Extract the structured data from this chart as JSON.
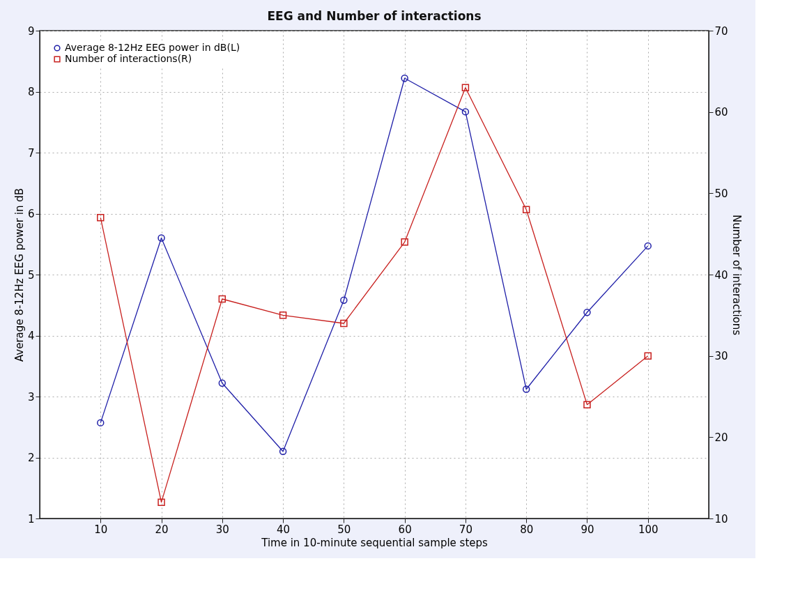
{
  "chart_data": {
    "type": "line",
    "title": "EEG and Number of interactions",
    "xlabel": "Time in 10-minute sequential sample steps",
    "ylabel": "Average 8-12Hz EEG power in dB",
    "y2label": "Number of interactions",
    "x": [
      10,
      20,
      30,
      40,
      50,
      60,
      70,
      80,
      90,
      100
    ],
    "xlim": [
      0,
      110
    ],
    "xticks": [
      10,
      20,
      30,
      40,
      50,
      60,
      70,
      80,
      90,
      100
    ],
    "ylim": [
      1,
      9
    ],
    "yticks": [
      1,
      2,
      3,
      4,
      5,
      6,
      7,
      8,
      9
    ],
    "y2lim": [
      10,
      70
    ],
    "y2ticks": [
      10,
      20,
      30,
      40,
      50,
      60,
      70
    ],
    "grid": true,
    "legend": "top left",
    "line_style": "solid",
    "series": [
      {
        "name": "Average 8-12Hz EEG power in dB(L)",
        "color": "#1f1fa8",
        "marker": "circle",
        "values": [
          2.57,
          5.6,
          3.22,
          2.1,
          4.58,
          8.22,
          7.67,
          3.12,
          4.38,
          5.47
        ]
      },
      {
        "name": "Number of interactions(R)",
        "color": "#c8201e",
        "marker": "square",
        "axis": "y2",
        "values": [
          47,
          12,
          37,
          35,
          34,
          44,
          63,
          48,
          24,
          30
        ]
      }
    ]
  }
}
